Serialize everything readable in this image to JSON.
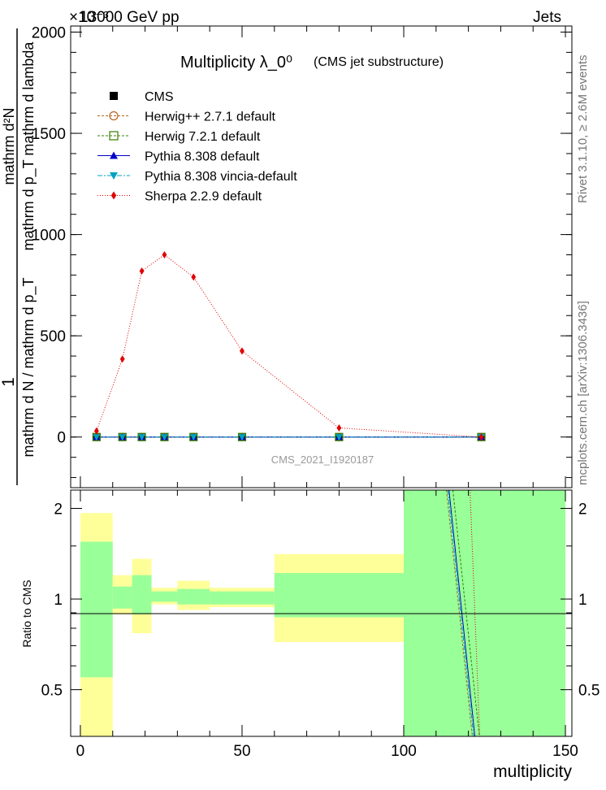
{
  "header": {
    "energy_label": "13000 GeV pp",
    "category_label": "Jets",
    "exponent_label": "×10⁻³"
  },
  "side_labels": {
    "rivet": "Rivet 3.1.10, ≥ 2.6M events",
    "mcplots": "mcplots.cern.ch [arXiv:1306.3436]"
  },
  "watermark": "CMS_2021_I1920187",
  "chart_data": [
    {
      "type": "scatter",
      "title": "Multiplicity  λ_0⁰",
      "subtitle": "(CMS jet substructure)",
      "ylabel_numerator": "1",
      "ylabel_denominator_top": "mathrm d²N",
      "ylabel_denominator_bottom": "mathrm d p_T mathrm d lambda",
      "ylabel_main": "mathrm d N / mathrm d p_T",
      "yticks": [
        0,
        500,
        1000,
        1500,
        2000
      ],
      "ylim": [
        -250,
        2030
      ],
      "xlim": [
        -3,
        152
      ],
      "x": [
        5,
        13,
        19,
        26,
        35,
        50,
        80,
        124
      ],
      "series": [
        {
          "name": "CMS",
          "color": "#000000",
          "marker": "square-filled",
          "values": [
            0,
            0,
            0,
            0,
            0,
            0,
            0,
            0
          ]
        },
        {
          "name": "Herwig++ 2.7.1 default",
          "color": "#b5651d",
          "marker": "circle-open",
          "values": [
            0,
            0,
            0,
            0,
            0,
            0,
            0,
            0
          ]
        },
        {
          "name": "Herwig 7.2.1 default",
          "color": "#3a7d00",
          "marker": "square-open",
          "values": [
            0,
            0,
            0,
            0,
            0,
            0,
            0,
            0
          ]
        },
        {
          "name": "Pythia 8.308 default",
          "color": "#0000cc",
          "marker": "triangle-up",
          "values": [
            0,
            0,
            0,
            0,
            0,
            0,
            0,
            0
          ]
        },
        {
          "name": "Pythia 8.308 vincia-default",
          "color": "#00a0c0",
          "marker": "triangle-down",
          "values": [
            0,
            0,
            0,
            0,
            0,
            0,
            0,
            0
          ]
        },
        {
          "name": "Sherpa 2.2.9 default",
          "color": "#e00000",
          "marker": "diamond",
          "values": [
            30,
            385,
            820,
            900,
            790,
            425,
            45,
            0
          ]
        }
      ]
    },
    {
      "type": "area",
      "ylabel": "Ratio to CMS",
      "xlabel": "multiplicity",
      "xticks": [
        0,
        50,
        100,
        150
      ],
      "yticks": [
        0.5,
        1,
        2
      ],
      "ylim": [
        0.35,
        2.3
      ],
      "xlim": [
        -3,
        152
      ],
      "bands": [
        {
          "x0": 0,
          "x1": 10,
          "yellow": [
            0.35,
            1.93
          ],
          "green": [
            0.55,
            1.55
          ]
        },
        {
          "x0": 10,
          "x1": 16,
          "yellow": [
            0.89,
            1.2
          ],
          "green": [
            0.93,
            1.1
          ]
        },
        {
          "x0": 16,
          "x1": 22,
          "yellow": [
            0.77,
            1.36
          ],
          "green": [
            0.89,
            1.2
          ]
        },
        {
          "x0": 22,
          "x1": 30,
          "yellow": [
            0.96,
            1.09
          ],
          "green": [
            0.98,
            1.06
          ]
        },
        {
          "x0": 30,
          "x1": 40,
          "yellow": [
            0.92,
            1.15
          ],
          "green": [
            0.96,
            1.08
          ]
        },
        {
          "x0": 40,
          "x1": 60,
          "yellow": [
            0.94,
            1.09
          ],
          "green": [
            0.96,
            1.06
          ]
        },
        {
          "x0": 60,
          "x1": 100,
          "yellow": [
            0.72,
            1.41
          ],
          "green": [
            0.87,
            1.22
          ]
        },
        {
          "x0": 100,
          "x1": 150,
          "yellow": [
            0.35,
            2.3
          ],
          "green": [
            0.35,
            2.3
          ]
        }
      ],
      "series": [
        {
          "name": "Pythia 8.308 default",
          "color": "#0000cc",
          "dash": "",
          "x": [
            114,
            122
          ],
          "values": [
            2.3,
            0.35
          ]
        },
        {
          "name": "Pythia 8.308 vincia-default",
          "color": "#00a0c0",
          "dash": "6,2,2,2",
          "x": [
            113.6,
            121.6
          ],
          "values": [
            2.3,
            0.35
          ]
        },
        {
          "name": "Herwig 7.2.1 default",
          "color": "#3a7d00",
          "dash": "3,2",
          "x": [
            115.2,
            123.4
          ],
          "values": [
            2.3,
            0.35
          ]
        },
        {
          "name": "Herwig++ 2.7.1 default",
          "color": "#b5651d",
          "dash": "3,2",
          "x": [
            113.2,
            121.2
          ],
          "values": [
            2.3,
            0.35
          ]
        },
        {
          "name": "Sherpa 2.2.9 default",
          "color": "#e00000",
          "dash": "1,2",
          "x": [
            120.5,
            123.5
          ],
          "values": [
            2.3,
            0.35
          ]
        }
      ]
    }
  ]
}
